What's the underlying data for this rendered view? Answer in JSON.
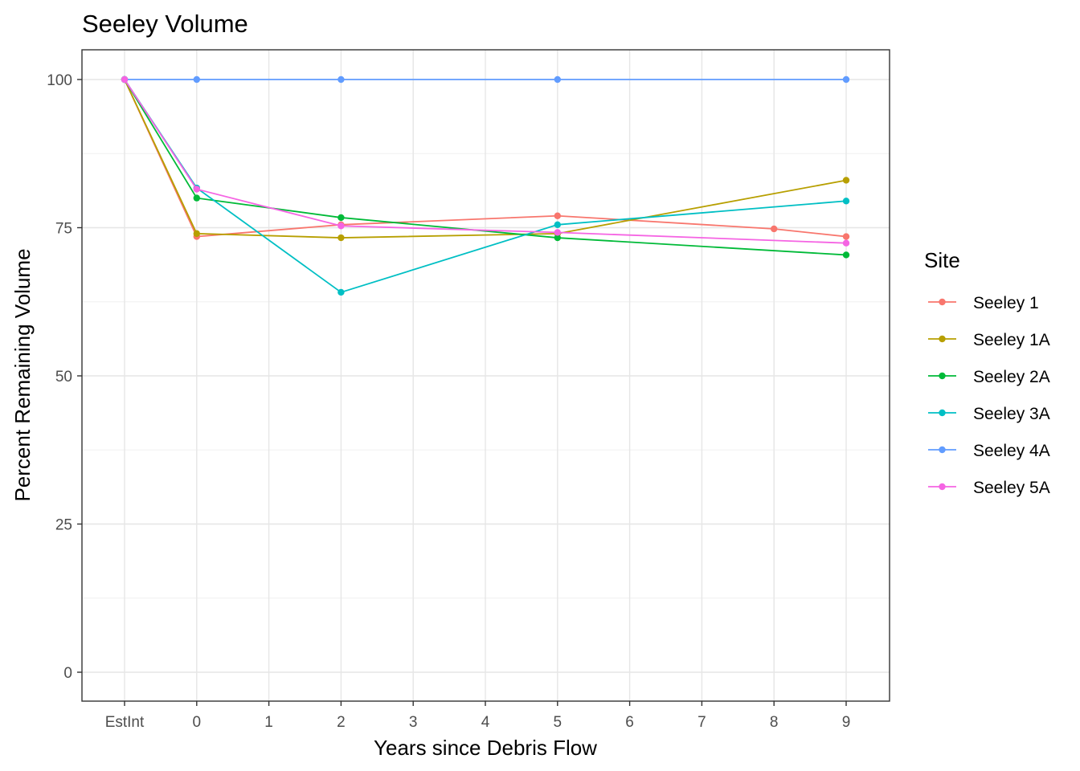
{
  "chart_data": {
    "type": "line",
    "title": "Seeley Volume",
    "xlabel": "Years since Debris Flow",
    "ylabel": "Percent Remaining Volume",
    "categories": [
      "EstInt",
      "0",
      "1",
      "2",
      "3",
      "4",
      "5",
      "6",
      "7",
      "8",
      "9"
    ],
    "yticks": [
      "0",
      "25",
      "50",
      "75",
      "100"
    ],
    "ylim": [
      -5,
      105
    ],
    "grid": true,
    "legend": {
      "title": "Site",
      "position": "right"
    },
    "series": [
      {
        "name": "Seeley 1",
        "color": "#F8766D",
        "points": [
          [
            "EstInt",
            100
          ],
          [
            "0",
            73.5
          ],
          [
            "2",
            75.5
          ],
          [
            "5",
            77.0
          ],
          [
            "8",
            74.8
          ],
          [
            "9",
            73.5
          ]
        ]
      },
      {
        "name": "Seeley 1A",
        "color": "#B79F00",
        "points": [
          [
            "EstInt",
            100
          ],
          [
            "0",
            74.0
          ],
          [
            "2",
            73.3
          ],
          [
            "5",
            74.0
          ],
          [
            "9",
            83.0
          ]
        ]
      },
      {
        "name": "Seeley 2A",
        "color": "#00BA38",
        "points": [
          [
            "EstInt",
            100
          ],
          [
            "0",
            80.0
          ],
          [
            "2",
            76.7
          ],
          [
            "5",
            73.3
          ],
          [
            "9",
            70.4
          ]
        ]
      },
      {
        "name": "Seeley 3A",
        "color": "#00BFC4",
        "points": [
          [
            "EstInt",
            100
          ],
          [
            "0",
            81.7
          ],
          [
            "2",
            64.1
          ],
          [
            "5",
            75.5
          ],
          [
            "9",
            79.5
          ]
        ]
      },
      {
        "name": "Seeley 4A",
        "color": "#619CFF",
        "points": [
          [
            "EstInt",
            100
          ],
          [
            "0",
            100
          ],
          [
            "2",
            100
          ],
          [
            "5",
            100
          ],
          [
            "9",
            100
          ]
        ]
      },
      {
        "name": "Seeley 5A",
        "color": "#F564E3",
        "points": [
          [
            "EstInt",
            100
          ],
          [
            "0",
            81.5
          ],
          [
            "2",
            75.3
          ],
          [
            "5",
            74.2
          ],
          [
            "9",
            72.4
          ]
        ]
      }
    ]
  }
}
